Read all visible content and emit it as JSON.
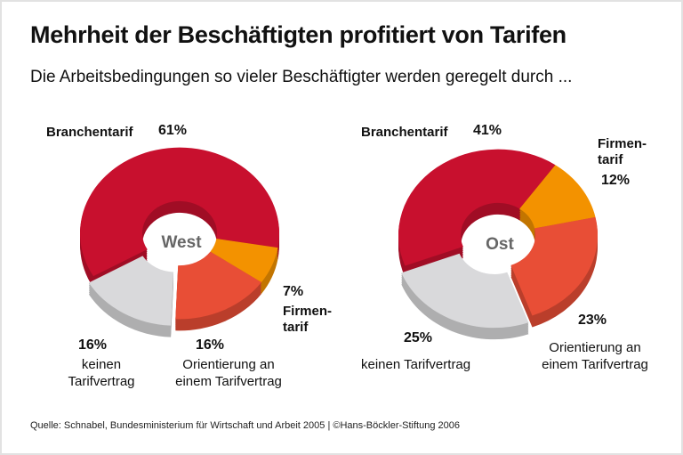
{
  "title": "Mehrheit der Beschäftigten profitiert von Tarifen",
  "subtitle": "Die Arbeitsbedingungen so vieler Beschäftigter werden geregelt durch ...",
  "source": "Quelle: Schnabel, Bundesministerium für Wirtschaft und Arbeit 2005 | ©Hans-Böckler-Stiftung 2006",
  "chart_data": [
    {
      "type": "pie",
      "center_label": "West",
      "categories": [
        "Branchentarif",
        "Firmentarif",
        "Orientierung an einem Tarifvertrag",
        "keinen Tarifvertrag"
      ],
      "values": [
        61,
        7,
        16,
        16
      ],
      "labels": {
        "branchen": "Branchentarif",
        "branchen_pct": "61%",
        "firmen1": "Firmen-",
        "firmen2": "tarif",
        "firmen_pct": "7%",
        "orient1": "Orientierung an",
        "orient2": "einem Tarifvertrag",
        "orient_pct": "16%",
        "kein1": "keinen",
        "kein2": "Tarifvertrag",
        "kein_pct": "16%"
      },
      "colors": [
        "#c8102e",
        "#f39200",
        "#e84e36",
        "#d9d9db"
      ]
    },
    {
      "type": "pie",
      "center_label": "Ost",
      "categories": [
        "Branchentarif",
        "Firmentarif",
        "Orientierung an einem Tarifvertrag",
        "keinen Tarifvertrag"
      ],
      "values": [
        41,
        12,
        23,
        25
      ],
      "labels": {
        "branchen": "Branchentarif",
        "branchen_pct": "41%",
        "firmen1": "Firmen-",
        "firmen2": "tarif",
        "firmen_pct": "12%",
        "orient1": "Orientierung an",
        "orient2": "einem Tarifvertrag",
        "orient_pct": "23%",
        "kein": "keinen Tarifvertrag",
        "kein_pct": "25%"
      },
      "colors": [
        "#c8102e",
        "#f39200",
        "#e84e36",
        "#d9d9db"
      ]
    }
  ]
}
